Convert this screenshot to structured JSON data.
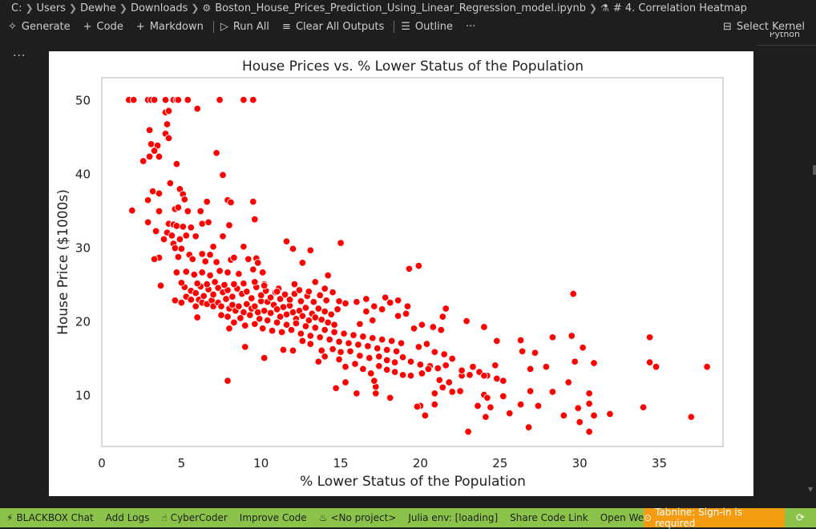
{
  "breadcrumb": {
    "items": [
      "C:",
      "Users",
      "Dewhe",
      "Downloads",
      "Boston_House_Prices_Prediction_Using_Linear_Regression_model.ipynb",
      "# 4. Correlation Heatmap"
    ],
    "file_icon": "notebook-icon",
    "section_icon": "markdown-section-icon"
  },
  "toolbar": {
    "generate": "Generate",
    "code": "Code",
    "markdown": "Markdown",
    "run_all": "Run All",
    "clear_outputs": "Clear All Outputs",
    "outline": "Outline",
    "more": "···",
    "select_kernel": "Select Kernel",
    "kernel_sub": "Python"
  },
  "cell": {
    "more": "···"
  },
  "chart_data": {
    "type": "scatter",
    "title": "House Prices vs. % Lower Status of the Population",
    "xlabel": "% Lower Status of the Population",
    "ylabel": "House Price ($1000s)",
    "xlim": [
      0,
      39
    ],
    "ylim": [
      3,
      53
    ],
    "xticks": [
      0,
      5,
      10,
      15,
      20,
      25,
      30,
      35
    ],
    "yticks": [
      10,
      20,
      30,
      40,
      50
    ],
    "grid": false,
    "point_color": "#ff0000",
    "points": [
      [
        1.7,
        50
      ],
      [
        2.0,
        50
      ],
      [
        2.9,
        50
      ],
      [
        3.1,
        50
      ],
      [
        3.3,
        50
      ],
      [
        4.0,
        50
      ],
      [
        4.5,
        50
      ],
      [
        4.7,
        50
      ],
      [
        4.8,
        50
      ],
      [
        5.4,
        50
      ],
      [
        7.4,
        50
      ],
      [
        8.9,
        50
      ],
      [
        9.5,
        50
      ],
      [
        6.0,
        48.8
      ],
      [
        4.0,
        48.3
      ],
      [
        4.2,
        48.5
      ],
      [
        4.1,
        46.7
      ],
      [
        3.0,
        45.9
      ],
      [
        4.0,
        45.4
      ],
      [
        4.2,
        44.8
      ],
      [
        3.1,
        44.0
      ],
      [
        3.5,
        43.8
      ],
      [
        3.3,
        43.1
      ],
      [
        7.2,
        42.8
      ],
      [
        3.0,
        42.3
      ],
      [
        3.6,
        42.3
      ],
      [
        2.6,
        41.7
      ],
      [
        4.7,
        41.3
      ],
      [
        7.6,
        39.8
      ],
      [
        4.3,
        38.7
      ],
      [
        4.9,
        37.9
      ],
      [
        3.2,
        37.6
      ],
      [
        3.6,
        37.3
      ],
      [
        5.1,
        37.2
      ],
      [
        5.2,
        36.5
      ],
      [
        6.6,
        36.2
      ],
      [
        7.9,
        36.4
      ],
      [
        8.1,
        36.1
      ],
      [
        9.5,
        36.2
      ],
      [
        2.9,
        36.4
      ],
      [
        1.9,
        35.0
      ],
      [
        3.6,
        34.9
      ],
      [
        4.6,
        35.2
      ],
      [
        4.8,
        35.4
      ],
      [
        5.4,
        34.9
      ],
      [
        6.2,
        34.9
      ],
      [
        9.6,
        33.8
      ],
      [
        2.9,
        33.4
      ],
      [
        4.2,
        33.2
      ],
      [
        4.5,
        33.1
      ],
      [
        4.7,
        32.9
      ],
      [
        5.1,
        32.8
      ],
      [
        5.6,
        32.7
      ],
      [
        6.3,
        33.2
      ],
      [
        6.7,
        33.4
      ],
      [
        8.0,
        33.0
      ],
      [
        4.1,
        32.0
      ],
      [
        3.4,
        32.2
      ],
      [
        4.4,
        31.6
      ],
      [
        5.3,
        31.6
      ],
      [
        5.9,
        31.5
      ],
      [
        7.6,
        31.5
      ],
      [
        4.9,
        31.1
      ],
      [
        4.5,
        30.5
      ],
      [
        4.6,
        29.9
      ],
      [
        5.0,
        29.8
      ],
      [
        3.9,
        31.1
      ],
      [
        3.6,
        28.6
      ],
      [
        4.8,
        28.7
      ],
      [
        5.5,
        29.0
      ],
      [
        6.3,
        29.1
      ],
      [
        6.8,
        29.0
      ],
      [
        7.0,
        30.1
      ],
      [
        8.9,
        30.1
      ],
      [
        3.3,
        28.4
      ],
      [
        5.7,
        28.4
      ],
      [
        6.5,
        28.1
      ],
      [
        7.2,
        28.0
      ],
      [
        8.1,
        28.3
      ],
      [
        8.3,
        28.6
      ],
      [
        9.2,
        28.4
      ],
      [
        9.7,
        28.5
      ],
      [
        11.6,
        30.8
      ],
      [
        12.0,
        29.8
      ],
      [
        13.1,
        29.6
      ],
      [
        15.0,
        30.6
      ],
      [
        3.7,
        24.8
      ],
      [
        4.7,
        26.6
      ],
      [
        5.3,
        26.7
      ],
      [
        5.8,
        26.3
      ],
      [
        6.3,
        26.6
      ],
      [
        6.8,
        26.2
      ],
      [
        7.4,
        26.8
      ],
      [
        7.9,
        26.6
      ],
      [
        8.6,
        26.4
      ],
      [
        9.5,
        27.0
      ],
      [
        9.8,
        27.9
      ],
      [
        10.1,
        26.6
      ],
      [
        12.6,
        27.9
      ],
      [
        14.2,
        26.2
      ],
      [
        19.3,
        27.1
      ],
      [
        19.9,
        27.5
      ],
      [
        13.4,
        25.3
      ],
      [
        12.1,
        25.0
      ],
      [
        10.2,
        25.0
      ],
      [
        11.1,
        24.4
      ],
      [
        4.6,
        22.8
      ],
      [
        5.0,
        22.5
      ],
      [
        5.3,
        23.3
      ],
      [
        5.6,
        22.9
      ],
      [
        5.9,
        22.0
      ],
      [
        6.1,
        22.9
      ],
      [
        6.3,
        22.5
      ],
      [
        6.6,
        22.3
      ],
      [
        6.9,
        22.8
      ],
      [
        7.0,
        22.0
      ],
      [
        7.3,
        22.5
      ],
      [
        7.5,
        22.0
      ],
      [
        7.8,
        23.0
      ],
      [
        8.0,
        21.7
      ],
      [
        8.2,
        22.2
      ],
      [
        8.4,
        21.4
      ],
      [
        8.6,
        22.0
      ],
      [
        8.9,
        21.2
      ],
      [
        9.1,
        22.3
      ],
      [
        9.4,
        21.7
      ],
      [
        9.6,
        22.0
      ],
      [
        9.8,
        21.2
      ],
      [
        10.0,
        22.7
      ],
      [
        10.2,
        21.4
      ],
      [
        10.4,
        22.6
      ],
      [
        10.6,
        21.1
      ],
      [
        10.8,
        22.2
      ],
      [
        11.0,
        21.6
      ],
      [
        11.2,
        20.6
      ],
      [
        11.4,
        21.9
      ],
      [
        11.6,
        20.9
      ],
      [
        11.8,
        22.1
      ],
      [
        12.0,
        21.2
      ],
      [
        12.2,
        20.3
      ],
      [
        12.4,
        21.4
      ],
      [
        12.6,
        20.7
      ],
      [
        12.8,
        21.8
      ],
      [
        13.0,
        20.1
      ],
      [
        13.2,
        21.0
      ],
      [
        13.4,
        20.5
      ],
      [
        13.6,
        21.7
      ],
      [
        13.8,
        20.2
      ],
      [
        14.0,
        21.3
      ],
      [
        14.2,
        19.8
      ],
      [
        14.4,
        20.9
      ],
      [
        14.6,
        19.5
      ],
      [
        14.8,
        21.6
      ],
      [
        5.2,
        24.6
      ],
      [
        5.6,
        24.1
      ],
      [
        5.9,
        23.8
      ],
      [
        6.2,
        24.7
      ],
      [
        6.4,
        23.4
      ],
      [
        6.7,
        24.3
      ],
      [
        7.0,
        23.6
      ],
      [
        7.3,
        24.5
      ],
      [
        7.6,
        23.9
      ],
      [
        7.9,
        24.2
      ],
      [
        8.2,
        23.3
      ],
      [
        8.5,
        24.4
      ],
      [
        8.8,
        23.7
      ],
      [
        9.1,
        24.0
      ],
      [
        9.4,
        23.1
      ],
      [
        9.7,
        24.6
      ],
      [
        10.0,
        23.5
      ],
      [
        10.3,
        24.1
      ],
      [
        10.6,
        23.2
      ],
      [
        10.9,
        23.9
      ],
      [
        11.2,
        23.0
      ],
      [
        11.5,
        23.6
      ],
      [
        11.8,
        22.9
      ],
      [
        12.1,
        23.7
      ],
      [
        12.5,
        22.7
      ],
      [
        12.9,
        23.4
      ],
      [
        13.3,
        22.6
      ],
      [
        13.7,
        23.5
      ],
      [
        14.1,
        22.8
      ],
      [
        14.5,
        23.9
      ],
      [
        14.9,
        22.7
      ],
      [
        15.3,
        22.4
      ],
      [
        5.0,
        25.2
      ],
      [
        6.0,
        25.1
      ],
      [
        6.6,
        25.0
      ],
      [
        7.1,
        25.3
      ],
      [
        7.7,
        24.9
      ],
      [
        8.3,
        25.0
      ],
      [
        8.9,
        25.1
      ],
      [
        9.6,
        25.3
      ],
      [
        10.2,
        24.8
      ],
      [
        11.0,
        24.0
      ],
      [
        12.4,
        24.2
      ],
      [
        13.0,
        24.0
      ],
      [
        14.0,
        24.4
      ],
      [
        7.9,
        20.6
      ],
      [
        8.3,
        19.8
      ],
      [
        8.7,
        20.4
      ],
      [
        9.0,
        19.4
      ],
      [
        9.3,
        20.8
      ],
      [
        9.6,
        19.6
      ],
      [
        9.9,
        20.3
      ],
      [
        10.1,
        19.0
      ],
      [
        10.4,
        20.1
      ],
      [
        10.7,
        18.7
      ],
      [
        11.0,
        19.8
      ],
      [
        11.3,
        18.5
      ],
      [
        11.6,
        19.5
      ],
      [
        11.9,
        18.8
      ],
      [
        12.2,
        19.7
      ],
      [
        12.5,
        18.3
      ],
      [
        12.8,
        19.3
      ],
      [
        13.1,
        18.0
      ],
      [
        13.4,
        19.1
      ],
      [
        13.7,
        17.8
      ],
      [
        14.0,
        18.8
      ],
      [
        14.3,
        17.5
      ],
      [
        14.6,
        18.5
      ],
      [
        14.9,
        17.2
      ],
      [
        15.2,
        18.3
      ],
      [
        15.5,
        17.0
      ],
      [
        15.8,
        18.1
      ],
      [
        16.1,
        16.8
      ],
      [
        16.4,
        17.9
      ],
      [
        16.7,
        16.6
      ],
      [
        17.0,
        17.7
      ],
      [
        17.3,
        16.3
      ],
      [
        17.6,
        17.5
      ],
      [
        17.9,
        16.1
      ],
      [
        18.2,
        17.3
      ],
      [
        18.5,
        15.9
      ],
      [
        18.8,
        17.0
      ],
      [
        6.0,
        20.5
      ],
      [
        7.5,
        20.8
      ],
      [
        8.0,
        19.0
      ],
      [
        9.0,
        16.5
      ],
      [
        10.2,
        15.0
      ],
      [
        11.4,
        16.1
      ],
      [
        12.0,
        16.0
      ],
      [
        12.6,
        17.3
      ],
      [
        13.1,
        16.9
      ],
      [
        13.8,
        16.0
      ],
      [
        14.5,
        16.2
      ],
      [
        15.0,
        15.8
      ],
      [
        15.6,
        15.9
      ],
      [
        16.2,
        15.3
      ],
      [
        16.8,
        15.0
      ],
      [
        17.4,
        15.2
      ],
      [
        17.9,
        14.7
      ],
      [
        18.4,
        14.4
      ],
      [
        18.9,
        15.1
      ],
      [
        19.4,
        14.5
      ],
      [
        20.0,
        14.1
      ],
      [
        20.6,
        13.9
      ],
      [
        21.1,
        13.6
      ],
      [
        21.6,
        14.0
      ],
      [
        13.6,
        14.5
      ],
      [
        14.0,
        15.2
      ],
      [
        14.9,
        14.8
      ],
      [
        15.3,
        13.8
      ],
      [
        15.9,
        14.2
      ],
      [
        16.4,
        13.5
      ],
      [
        16.9,
        12.9
      ],
      [
        17.4,
        13.9
      ],
      [
        17.9,
        13.4
      ],
      [
        18.4,
        13.1
      ],
      [
        18.9,
        12.7
      ],
      [
        19.4,
        12.6
      ],
      [
        20.1,
        12.9
      ],
      [
        20.5,
        13.5
      ],
      [
        21.2,
        12.0
      ],
      [
        21.8,
        11.7
      ],
      [
        22.6,
        12.6
      ],
      [
        23.1,
        12.7
      ],
      [
        23.7,
        13.1
      ],
      [
        24.2,
        12.6
      ],
      [
        24.8,
        12.2
      ],
      [
        25.2,
        11.9
      ],
      [
        16.0,
        22.6
      ],
      [
        16.6,
        21.3
      ],
      [
        17.1,
        22.0
      ],
      [
        17.6,
        21.6
      ],
      [
        18.1,
        22.5
      ],
      [
        18.6,
        20.7
      ],
      [
        19.1,
        21.0
      ],
      [
        19.6,
        19.0
      ],
      [
        20.1,
        19.5
      ],
      [
        20.8,
        19.2
      ],
      [
        21.4,
        20.6
      ],
      [
        21.6,
        21.7
      ],
      [
        16.6,
        23.0
      ],
      [
        17.8,
        23.2
      ],
      [
        18.6,
        22.8
      ],
      [
        19.2,
        22.0
      ],
      [
        17.0,
        20.1
      ],
      [
        16.2,
        19.6
      ],
      [
        19.9,
        16.5
      ],
      [
        20.4,
        16.9
      ],
      [
        20.9,
        15.8
      ],
      [
        21.5,
        15.5
      ],
      [
        22.0,
        14.9
      ],
      [
        22.6,
        13.3
      ],
      [
        21.3,
        18.8
      ],
      [
        22.9,
        20.0
      ],
      [
        24.0,
        19.2
      ],
      [
        24.8,
        17.3
      ],
      [
        26.3,
        17.4
      ],
      [
        26.4,
        15.9
      ],
      [
        27.2,
        15.7
      ],
      [
        27.9,
        13.8
      ],
      [
        28.3,
        17.8
      ],
      [
        29.5,
        18.0
      ],
      [
        30.2,
        16.4
      ],
      [
        29.7,
        14.5
      ],
      [
        30.9,
        14.3
      ],
      [
        24.7,
        14.0
      ],
      [
        26.9,
        13.5
      ],
      [
        23.3,
        13.8
      ],
      [
        24.0,
        12.6
      ],
      [
        29.3,
        11.7
      ],
      [
        28.3,
        10.4
      ],
      [
        30.6,
        10.2
      ],
      [
        26.9,
        10.5
      ],
      [
        30.6,
        8.8
      ],
      [
        26.3,
        8.7
      ],
      [
        27.4,
        8.5
      ],
      [
        25.2,
        9.8
      ],
      [
        29.0,
        7.2
      ],
      [
        29.9,
        8.2
      ],
      [
        30.9,
        7.2
      ],
      [
        30.0,
        6.3
      ],
      [
        30.6,
        5.0
      ],
      [
        25.6,
        7.5
      ],
      [
        26.8,
        5.6
      ],
      [
        24.1,
        7.0
      ],
      [
        23.0,
        5.0
      ],
      [
        20.9,
        8.7
      ],
      [
        20.0,
        8.5
      ],
      [
        19.8,
        8.4
      ],
      [
        20.3,
        7.2
      ],
      [
        20.9,
        10.2
      ],
      [
        21.4,
        11.0
      ],
      [
        22.0,
        10.4
      ],
      [
        22.5,
        10.5
      ],
      [
        23.6,
        8.5
      ],
      [
        24.4,
        8.3
      ],
      [
        24.0,
        10.0
      ],
      [
        24.2,
        9.6
      ],
      [
        18.1,
        9.6
      ],
      [
        17.2,
        11.1
      ],
      [
        17.2,
        10.2
      ],
      [
        16.0,
        10.2
      ],
      [
        14.7,
        10.9
      ],
      [
        15.3,
        11.7
      ],
      [
        17.1,
        11.9
      ],
      [
        29.6,
        23.7
      ],
      [
        31.9,
        7.4
      ],
      [
        34.0,
        8.3
      ],
      [
        34.4,
        17.8
      ],
      [
        34.4,
        14.4
      ],
      [
        34.8,
        13.8
      ],
      [
        37.0,
        7.0
      ],
      [
        38.0,
        13.8
      ],
      [
        7.9,
        11.9
      ]
    ]
  },
  "status": {
    "blackbox": "BLACKBOX Chat",
    "add_logs": "Add Logs",
    "cybercoder": "CyberCoder",
    "improve": "Improve Code",
    "project": "<No project>",
    "julia": "Julia env: [loading]",
    "share": "Share Code Link",
    "open_site": "Open Website",
    "tabnine": "Tabnine: Sign-in is required"
  }
}
